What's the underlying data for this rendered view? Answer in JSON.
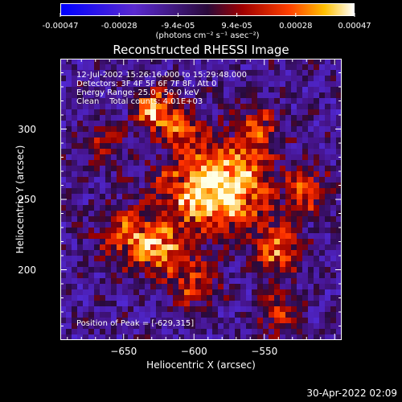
{
  "colorbar": {
    "tick_labels": [
      "-0.00047",
      "-0.00028",
      "-9.4e-05",
      "9.4e-05",
      "0.00028",
      "0.00047"
    ],
    "units": "(photons cm⁻² s⁻¹ asec⁻²)",
    "range": [
      -0.00047,
      0.00047
    ]
  },
  "title": "Reconstructed RHESSI Image",
  "annotations": {
    "time": "12-Jul-2002 15:26:16.000 to 15:29:48.000",
    "detectors": "Detectors: 3F 4F 5F 6F 7F 8F, Att 0",
    "energy": "Energy Range: 25.0 - 50.0 keV",
    "clean": "Clean    Total counts: 4.01E+03",
    "peak": "Position of Peak = [-629,315]"
  },
  "axes": {
    "xlabel": "Heliocentric X (arcsec)",
    "ylabel": "Heliocentric Y (arcsec)",
    "xticks": [
      -650,
      -600,
      -550
    ],
    "yticks": [
      300,
      250,
      200
    ],
    "xtick_labels": [
      "−650",
      "−600",
      "−550"
    ],
    "ytick_labels": [
      "300",
      "250",
      "200"
    ],
    "xlim": [
      -695,
      -495
    ],
    "ylim": [
      150,
      350
    ]
  },
  "datestamp": "30-Apr-2022 02:09"
}
